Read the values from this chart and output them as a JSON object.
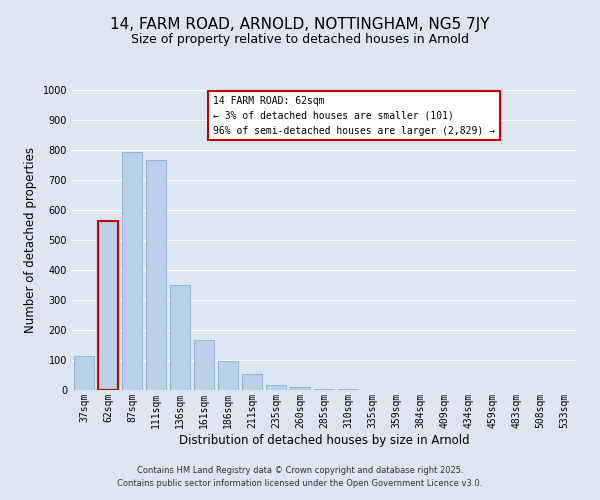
{
  "title": "14, FARM ROAD, ARNOLD, NOTTINGHAM, NG5 7JY",
  "subtitle": "Size of property relative to detached houses in Arnold",
  "xlabel": "Distribution of detached houses by size in Arnold",
  "ylabel": "Number of detached properties",
  "categories": [
    "37sqm",
    "62sqm",
    "87sqm",
    "111sqm",
    "136sqm",
    "161sqm",
    "186sqm",
    "211sqm",
    "235sqm",
    "260sqm",
    "285sqm",
    "310sqm",
    "335sqm",
    "359sqm",
    "384sqm",
    "409sqm",
    "434sqm",
    "459sqm",
    "483sqm",
    "508sqm",
    "533sqm"
  ],
  "values": [
    115,
    565,
    793,
    768,
    350,
    168,
    98,
    53,
    18,
    10,
    5,
    3,
    1,
    0,
    0,
    0,
    0,
    0,
    0,
    0,
    0
  ],
  "bar_color": "#b8d0e8",
  "highlight_bar_index": 1,
  "highlight_bar_edge_color": "#cc0000",
  "normal_bar_edge_color": "#88aed0",
  "ylim": [
    0,
    1000
  ],
  "yticks": [
    0,
    100,
    200,
    300,
    400,
    500,
    600,
    700,
    800,
    900,
    1000
  ],
  "annotation_title": "14 FARM ROAD: 62sqm",
  "annotation_line1": "← 3% of detached houses are smaller (101)",
  "annotation_line2": "96% of semi-detached houses are larger (2,829) →",
  "annotation_box_facecolor": "#ffffff",
  "annotation_box_edgecolor": "#cc0000",
  "bg_color": "#dce6f0",
  "plot_bg_color": "#dce6f0",
  "footer_line1": "Contains HM Land Registry data © Crown copyright and database right 2025.",
  "footer_line2": "Contains public sector information licensed under the Open Government Licence v3.0.",
  "grid_color": "#ffffff",
  "title_fontsize": 11,
  "subtitle_fontsize": 9,
  "tick_fontsize": 7,
  "label_fontsize": 8.5,
  "footer_fontsize": 6
}
